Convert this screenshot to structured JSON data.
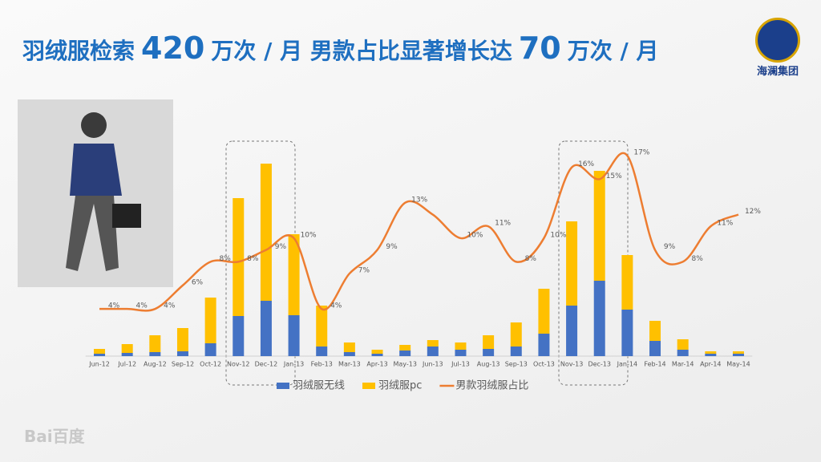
{
  "header": {
    "title_parts": [
      "羽绒服检索",
      "420",
      "万次 / 月 男款占比显著增长达",
      "70",
      "万次 / 月"
    ],
    "logo": "海澜集团",
    "watermark": "Bai百度"
  },
  "chart_data": {
    "type": "bar",
    "categories": [
      "Jun-12",
      "Jul-12",
      "Aug-12",
      "Sep-12",
      "Oct-12",
      "Nov-12",
      "Dec-12",
      "Jan-13",
      "Feb-13",
      "Mar-13",
      "Apr-13",
      "May-13",
      "Jun-13",
      "Jul-13",
      "Aug-13",
      "Sep-13",
      "Oct-13",
      "Nov-13",
      "Dec-13",
      "Jan-14",
      "Feb-14",
      "Mar-14",
      "Apr-14",
      "May-14"
    ],
    "series": [
      {
        "name": "羽绒服无线",
        "color": "#4472c4",
        "values": [
          3,
          4,
          5,
          6,
          16,
          50,
          69,
          51,
          12,
          5,
          3,
          7,
          12,
          8,
          9,
          12,
          28,
          63,
          94,
          58,
          19,
          8,
          3,
          3
        ]
      },
      {
        "name": "羽绒服pc",
        "color": "#ffc000",
        "values": [
          6,
          11,
          21,
          29,
          57,
          147,
          171,
          101,
          51,
          12,
          5,
          7,
          8,
          9,
          17,
          30,
          56,
          105,
          137,
          68,
          25,
          13,
          3,
          3
        ]
      },
      {
        "name": "男款羽绒服占比",
        "color": "#ed7d31",
        "type": "line",
        "axis": "y2",
        "values": [
          4,
          4,
          4,
          6,
          8,
          8,
          9,
          10,
          4,
          7,
          9,
          13,
          12,
          10,
          11,
          8,
          10,
          16,
          15,
          17,
          9,
          8,
          11,
          12
        ],
        "value_labels": [
          "4%",
          "4%",
          "4%",
          "6%",
          "8%",
          "8%",
          "9%",
          "10%",
          "4%",
          "7%",
          "9%",
          "13%",
          null,
          "10%",
          "11%",
          "8%",
          "10%",
          "16%",
          "15%",
          "17%",
          "9%",
          "8%",
          "11%",
          "12%"
        ]
      }
    ],
    "ylim": [
      0,
      250
    ],
    "y2lim": [
      0,
      17
    ],
    "legend": "bottom"
  }
}
